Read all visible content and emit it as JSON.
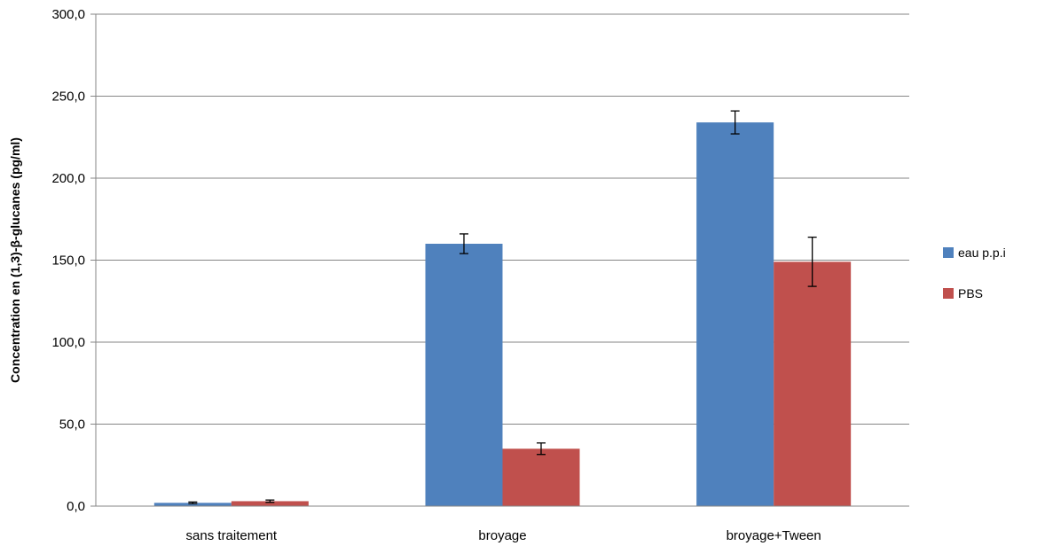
{
  "chart_data": {
    "type": "bar",
    "title": "",
    "xlabel": "",
    "ylabel": "Concentration en (1,3)-β-glucanes  (pg/ml)",
    "ylim": [
      0,
      300
    ],
    "yticks": [
      "0,0",
      "50,0",
      "100,0",
      "150,0",
      "200,0",
      "250,0",
      "300,0"
    ],
    "grid": true,
    "legend_position": "right",
    "categories": [
      "sans traitement",
      "broyage",
      "broyage+Tween"
    ],
    "series": [
      {
        "name": "eau p.p.i",
        "color": "#4F81BD",
        "values": [
          2,
          160,
          234
        ],
        "errors": [
          0.5,
          6,
          7
        ]
      },
      {
        "name": "PBS",
        "color": "#C0504D",
        "values": [
          3,
          35,
          149
        ],
        "errors": [
          0.7,
          3.5,
          15
        ]
      }
    ]
  }
}
